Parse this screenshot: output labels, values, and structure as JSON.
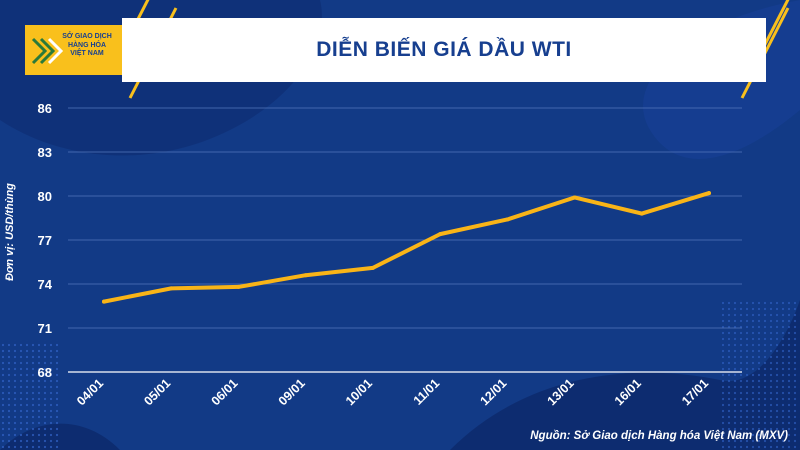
{
  "header": {
    "title": "DIỄN BIẾN GIÁ DẦU WTI",
    "logo_lines": [
      "SỞ GIAO DỊCH",
      "HÀNG HÓA",
      "VIỆT NAM"
    ]
  },
  "source": "Nguồn: Sở Giao dịch Hàng hóa Việt Nam (MXV)",
  "colors": {
    "background": "#123a86",
    "line": "#f9b417",
    "accent_yellow": "#f9c01c",
    "title": "#173f8f"
  },
  "chart_data": {
    "type": "line",
    "title": "DIỄN BIẾN GIÁ DẦU WTI",
    "xlabel": "",
    "ylabel": "Đơn vị: USD/thùng",
    "categories": [
      "04/01",
      "05/01",
      "06/01",
      "09/01",
      "10/01",
      "11/01",
      "12/01",
      "13/01",
      "16/01",
      "17/01"
    ],
    "series": [
      {
        "values": [
          72.8,
          73.7,
          73.8,
          74.6,
          75.1,
          77.4,
          78.4,
          79.9,
          78.8,
          80.2
        ]
      }
    ],
    "yticks": [
      68,
      71,
      74,
      77,
      80,
      83,
      86
    ],
    "ylim": [
      68,
      86
    ],
    "grid": true,
    "legend": "none"
  }
}
